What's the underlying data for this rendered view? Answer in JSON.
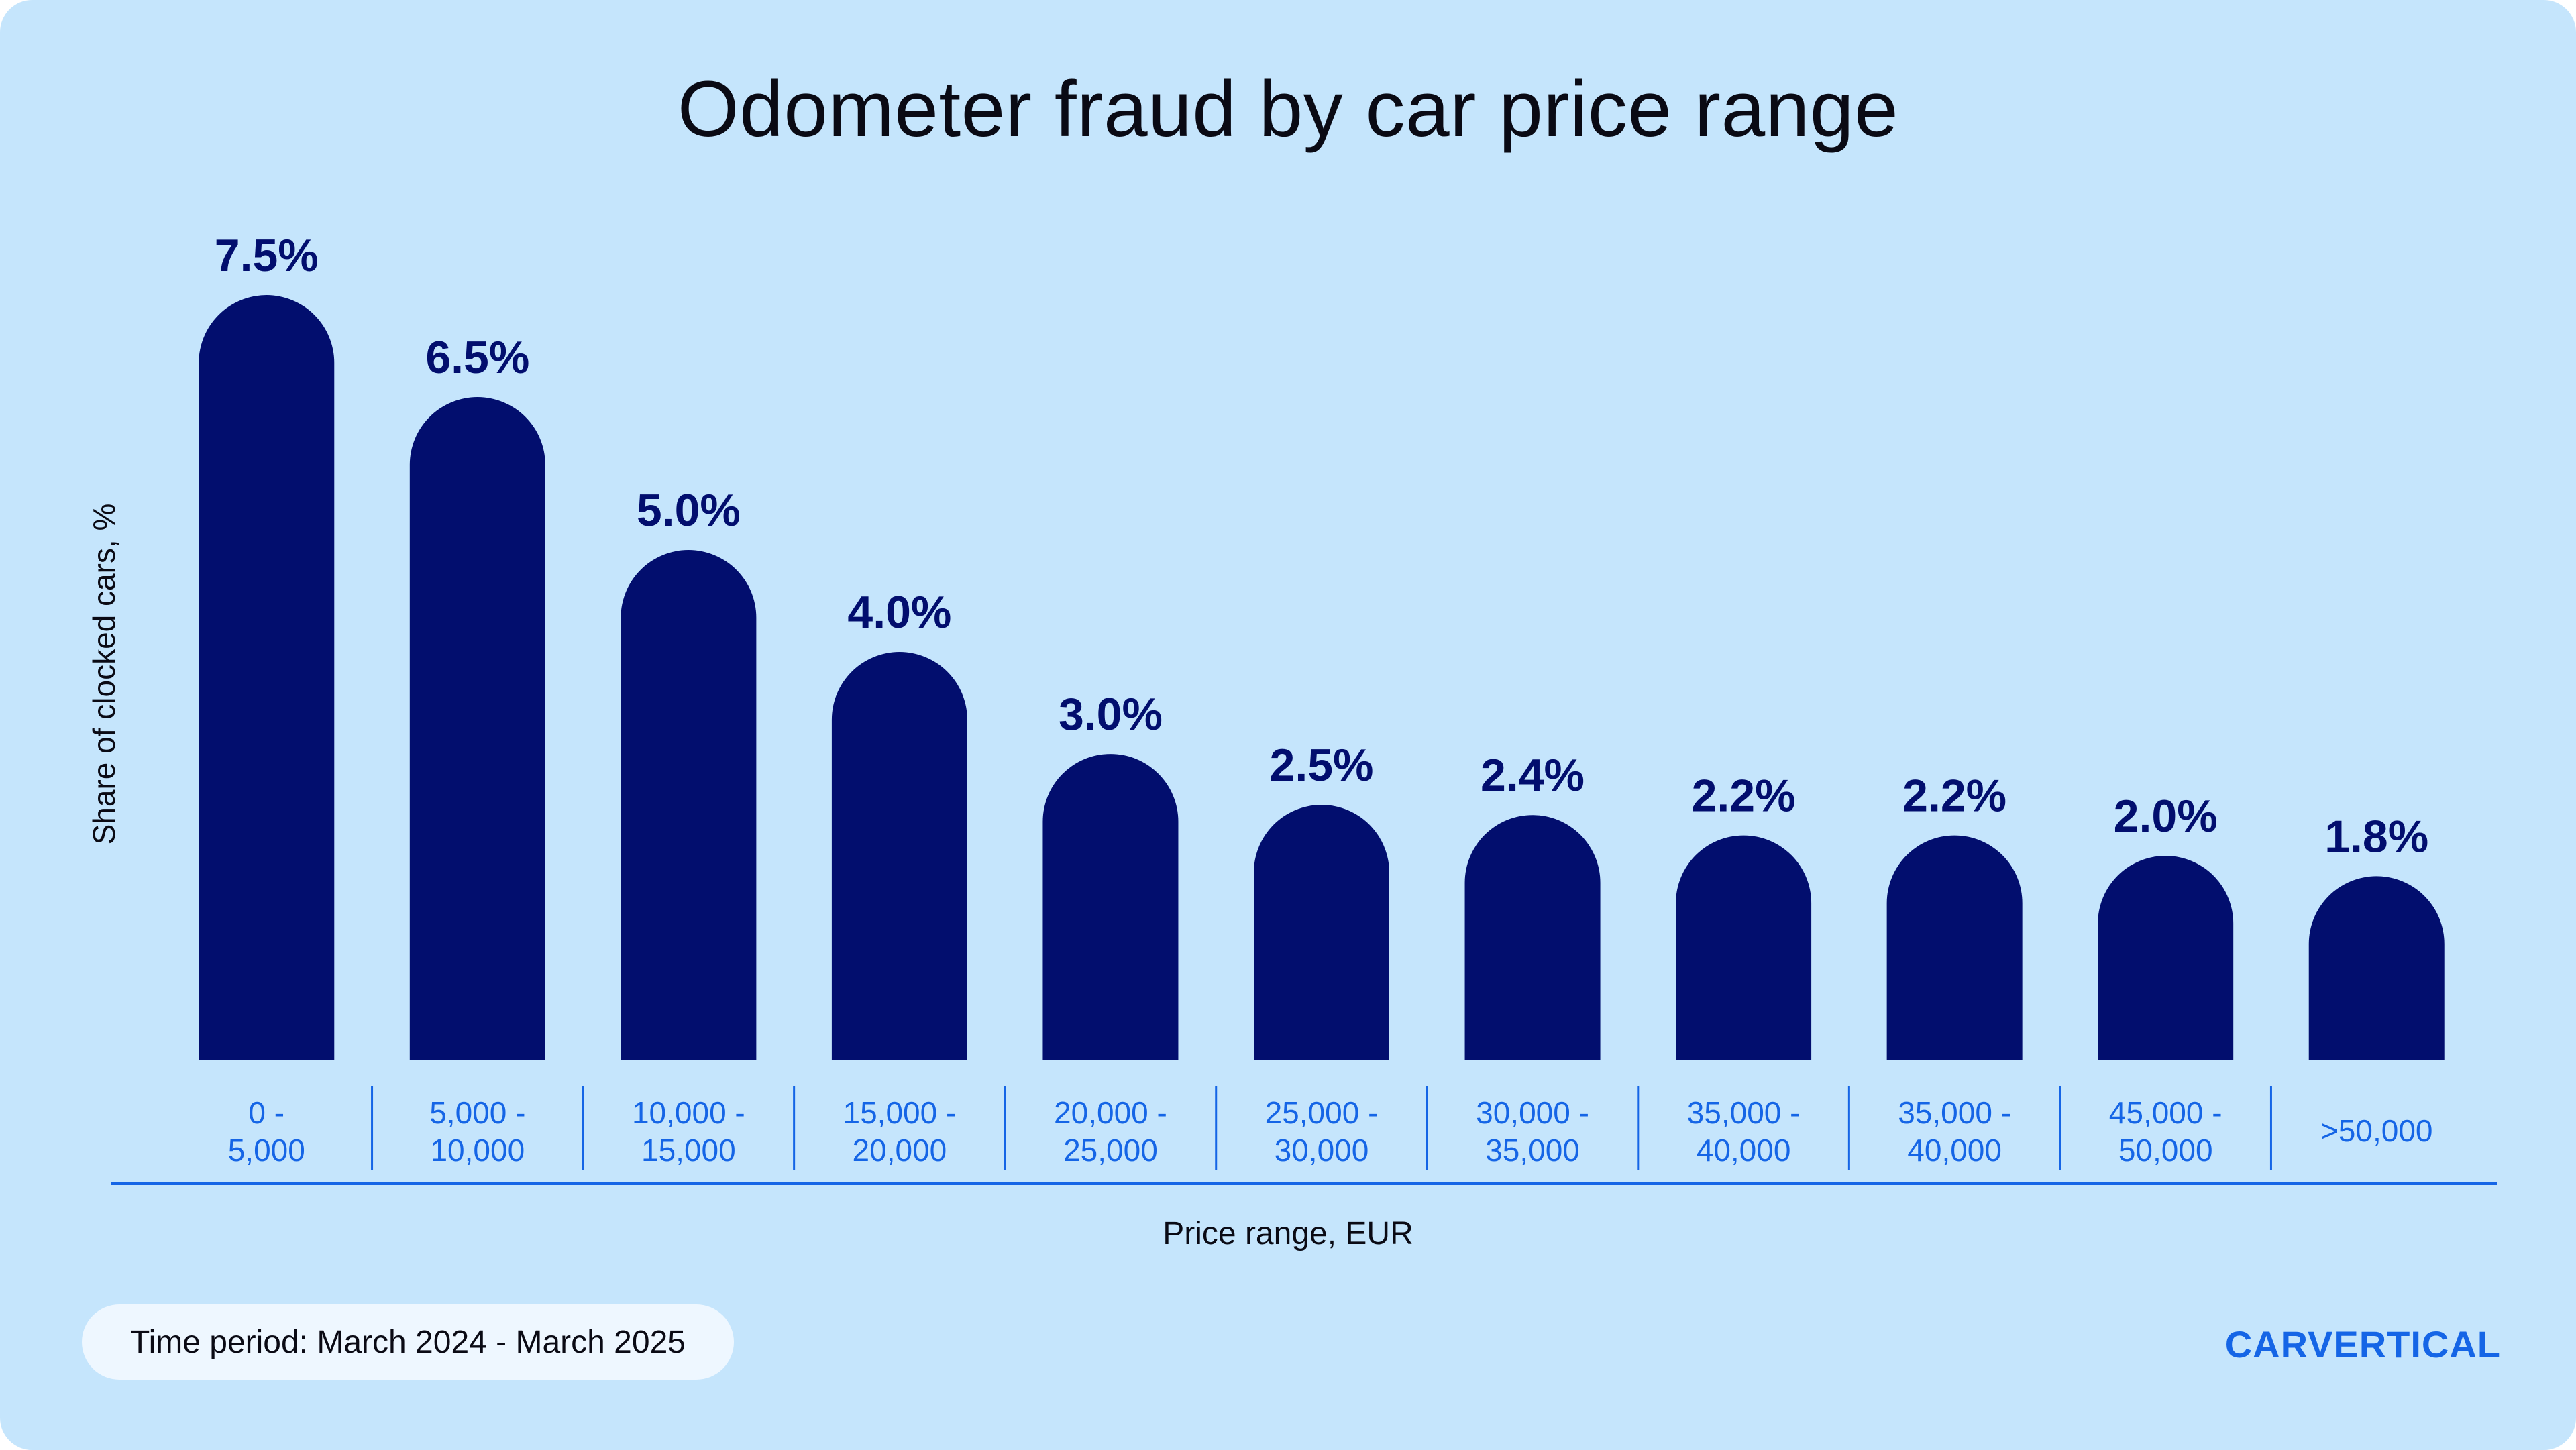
{
  "chart_data": {
    "type": "bar",
    "title": "Odometer fraud by car price range",
    "xlabel": "Price range, EUR",
    "ylabel": "Share of clocked cars, %",
    "categories": [
      "0 -\n5,000",
      "5,000 -\n10,000",
      "10,000 -\n15,000",
      "15,000 -\n20,000",
      "20,000 -\n25,000",
      "25,000 -\n30,000",
      "30,000 -\n35,000",
      "35,000 -\n40,000",
      "35,000 -\n40,000",
      "45,000 -\n50,000",
      ">50,000"
    ],
    "values": [
      7.5,
      6.5,
      5.0,
      4.0,
      3.0,
      2.5,
      2.4,
      2.2,
      2.2,
      2.0,
      1.8
    ],
    "value_labels": [
      "7.5%",
      "6.5%",
      "5.0%",
      "4.0%",
      "3.0%",
      "2.5%",
      "2.4%",
      "2.2%",
      "2.2%",
      "2.0%",
      "1.8%"
    ],
    "ylim": [
      0,
      7.5
    ],
    "grid": false,
    "legend": "none",
    "colors": {
      "bar": "#020e6e",
      "value_label": "#020e6e",
      "tick_label": "#1565e6",
      "axis_line": "#1565e6",
      "background": "#c5e5fc"
    }
  },
  "footer": {
    "time_period": "Time period: March 2024 - March 2025",
    "brand": "CARVERTICAL",
    "brand_color": "#1565e6"
  }
}
